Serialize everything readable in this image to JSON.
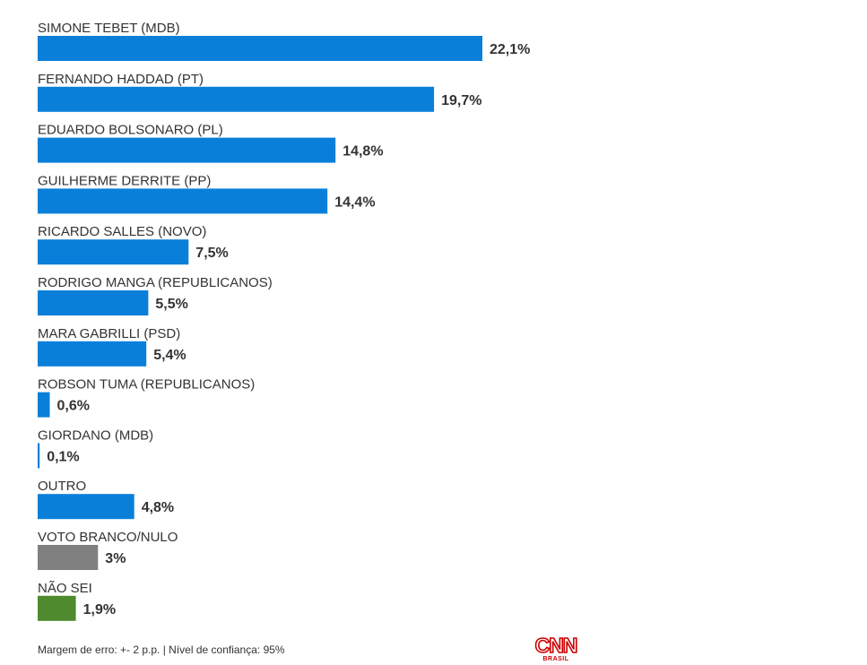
{
  "chart_data": {
    "type": "bar",
    "orientation": "horizontal",
    "categories": [
      "SIMONE TEBET (MDB)",
      "FERNANDO HADDAD (PT)",
      "EDUARDO BOLSONARO (PL)",
      "GUILHERME DERRITE (PP)",
      "RICARDO SALLES (NOVO)",
      "RODRIGO MANGA (REPUBLICANOS)",
      "MARA GABRILLI (PSD)",
      "ROBSON TUMA (REPUBLICANOS)",
      "GIORDANO (MDB)",
      "OUTRO",
      "VOTO BRANCO/NULO",
      "NÃO SEI"
    ],
    "values": [
      22.1,
      19.7,
      14.8,
      14.4,
      7.5,
      5.5,
      5.4,
      0.6,
      0.1,
      4.8,
      3,
      1.9
    ],
    "value_labels": [
      "22,1%",
      "19,7%",
      "14,8%",
      "14,4%",
      "7,5%",
      "5,5%",
      "5,4%",
      "0,6%",
      "0,1%",
      "4,8%",
      "3%",
      "1,9%"
    ],
    "colors": [
      "#0a7fd9",
      "#0a7fd9",
      "#0a7fd9",
      "#0a7fd9",
      "#0a7fd9",
      "#0a7fd9",
      "#0a7fd9",
      "#0a7fd9",
      "#0a7fd9",
      "#0a7fd9",
      "#808080",
      "#4f8a2f"
    ],
    "unit": "%",
    "xlim": [
      0,
      22.1
    ],
    "grid": false,
    "legend": "none"
  },
  "footer": {
    "note": "Margem de erro: +- 2 p.p. | Nível de confiança: 95%"
  },
  "logo": {
    "main": "CNN",
    "sub": "BRASIL",
    "color": "#cc0000"
  }
}
